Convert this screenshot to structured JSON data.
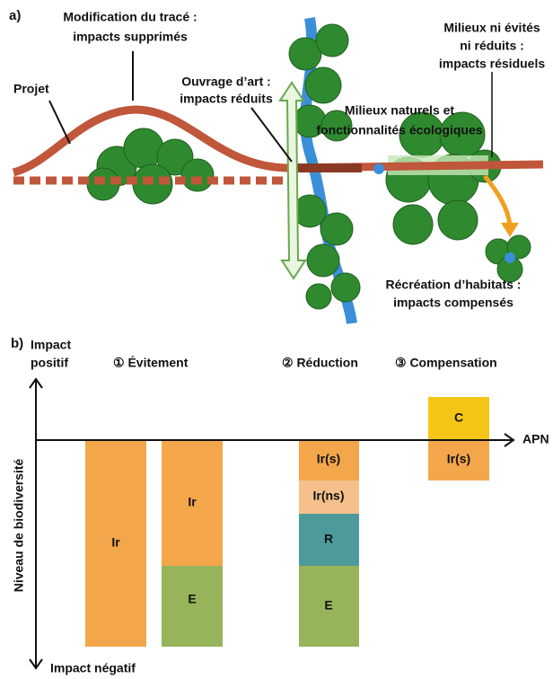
{
  "panel_a": {
    "label": "a)",
    "project": "Projet",
    "modification": [
      "Modification du tracé :",
      "impacts supprimés"
    ],
    "structure": [
      "Ouvrage d’art :",
      "impacts réduits"
    ],
    "natural_areas": [
      "Milieux naturels et",
      "fonctionnalités écologiques"
    ],
    "residual": [
      "Milieux ni évités",
      "ni réduits :",
      "impacts résiduels"
    ],
    "compensation": [
      "Récréation d’habitats :",
      "impacts compensés"
    ]
  },
  "panel_b": {
    "label": "b)",
    "y_top": [
      "Impact",
      "positif"
    ],
    "y_bottom": "Impact négatif",
    "y_label": "Niveau de biodiversité",
    "x_label": "APN",
    "steps": [
      "① Évitement",
      "② Réduction",
      "③ Compensation"
    ],
    "columns": [
      [
        "Ir"
      ],
      [
        "Ir",
        "E"
      ],
      [
        "Ir(s)",
        "Ir(ns)",
        "R",
        "E"
      ],
      [
        "C",
        "Ir(s)"
      ]
    ]
  }
}
